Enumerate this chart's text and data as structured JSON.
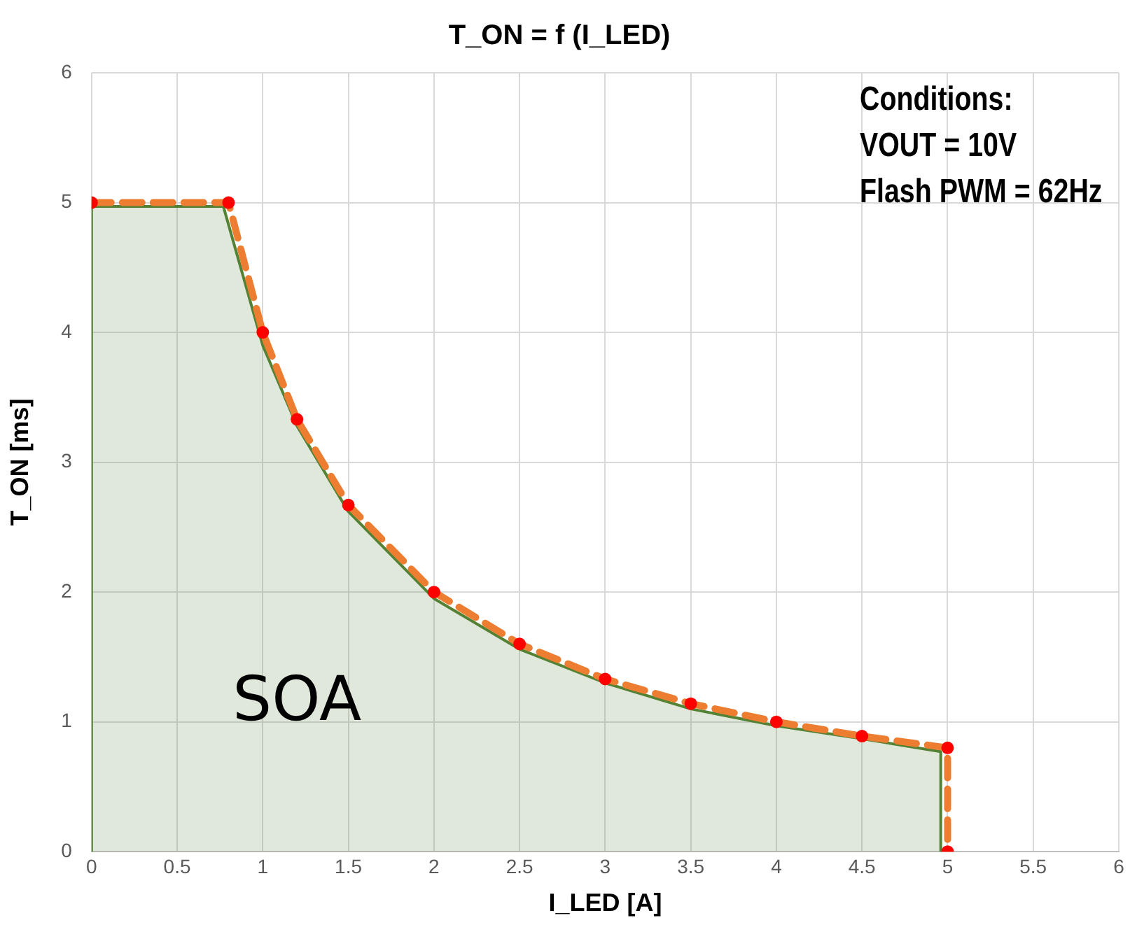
{
  "chart_data": {
    "type": "line",
    "title": "T_ON = f (I_LED)",
    "xlabel": "I_LED [A]",
    "ylabel": "T_ON [ms]",
    "xlim": [
      0,
      6
    ],
    "xticks": [
      0,
      0.5,
      1,
      1.5,
      2,
      2.5,
      3,
      3.5,
      4,
      4.5,
      5,
      5.5,
      6
    ],
    "ylim": [
      0,
      6
    ],
    "yticks": [
      0,
      1,
      2,
      3,
      4,
      5,
      6
    ],
    "grid": true,
    "legend": false,
    "series": [
      {
        "type": "area",
        "color": "#548235",
        "marker": "none",
        "line_style": "solid",
        "x": [
          0,
          0,
          0.77,
          1,
          1.2,
          1.5,
          2,
          2.5,
          3,
          3.5,
          4,
          4.5,
          4.96,
          4.96
        ],
        "values": [
          0,
          4.97,
          4.97,
          3.9,
          3.28,
          2.62,
          1.95,
          1.56,
          1.3,
          1.1,
          0.97,
          0.87,
          0.77,
          0
        ]
      },
      {
        "color": "#ed7d31",
        "marker": "none",
        "line_style": "dashed",
        "x": [
          0,
          0.8,
          1,
          1.2,
          1.5,
          2,
          2.5,
          3,
          3.5,
          4,
          4.5,
          5,
          5
        ],
        "values": [
          5,
          5,
          4,
          3.33,
          2.67,
          2,
          1.6,
          1.33,
          1.14,
          1,
          0.89,
          0.8,
          0
        ]
      },
      {
        "type": "scatter",
        "color": "#ff0000",
        "marker": "circle",
        "x": [
          0,
          0.8,
          1,
          1.2,
          1.5,
          2,
          2.5,
          3,
          3.5,
          4,
          4.5,
          5,
          5
        ],
        "values": [
          5,
          5,
          4,
          3.33,
          2.67,
          2,
          1.6,
          1.33,
          1.14,
          1,
          0.89,
          0.8,
          0
        ]
      }
    ],
    "annotations": [
      "Conditions:",
      "VOUT = 10V",
      "Flash PWM = 62Hz",
      "SOA"
    ]
  }
}
